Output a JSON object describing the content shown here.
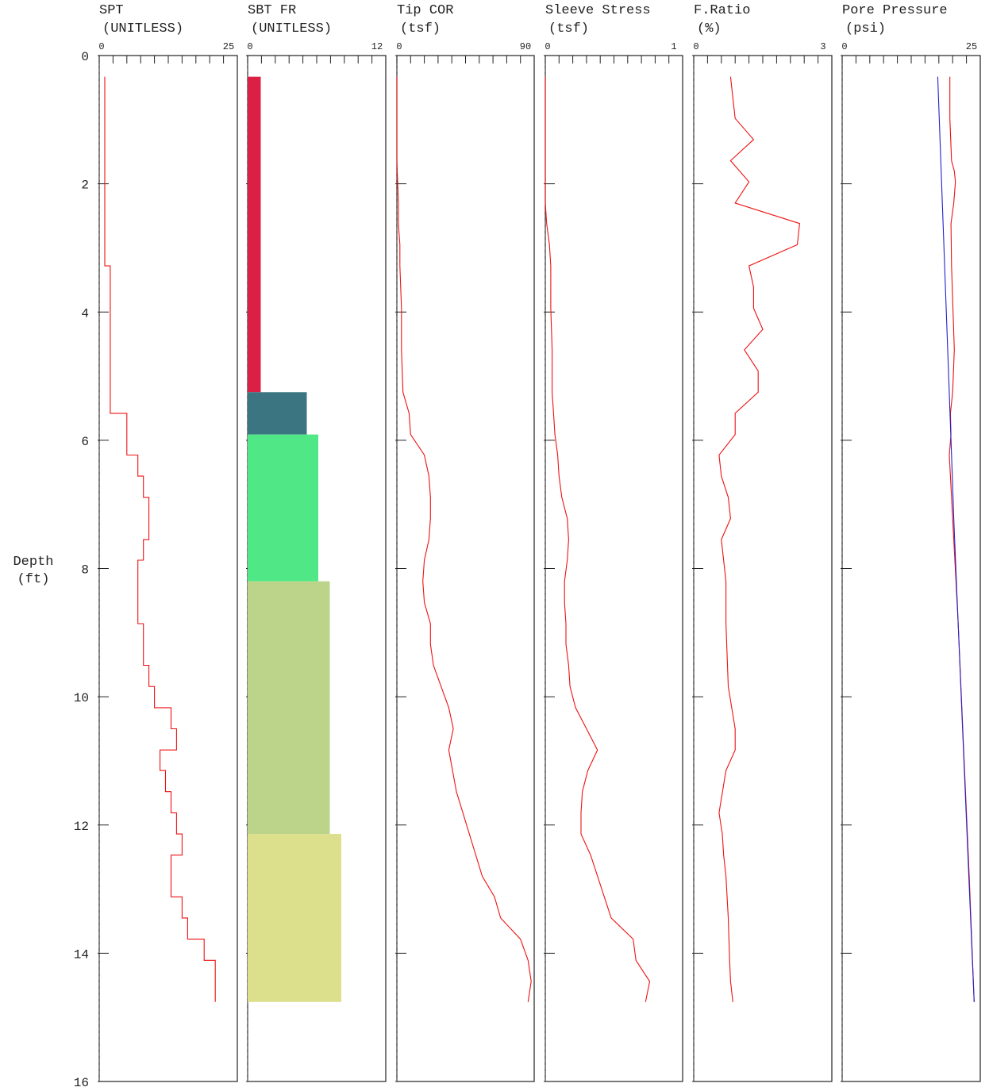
{
  "depth_axis": {
    "label_line1": "Depth",
    "label_line2": "(ft)",
    "min": 0,
    "max": 16,
    "ticks": [
      "0",
      "2",
      "4",
      "6",
      "8",
      "10",
      "12",
      "14",
      "16"
    ]
  },
  "colors": {
    "line_primary": "#ee1111",
    "line_secondary": "#2222cc",
    "frame": "#222222"
  },
  "chart_data": [
    {
      "type": "line",
      "title": "SPT",
      "unit": "(UNITLESS)",
      "xlim": [
        0,
        25
      ],
      "xmin_label": "0",
      "xmax_label": "25",
      "step": true,
      "series": [
        {
          "x": [
            1,
            1,
            2,
            2,
            5,
            5,
            7,
            7,
            8,
            8,
            9,
            9,
            8,
            8,
            7,
            7,
            8,
            8,
            9,
            9,
            10,
            10,
            13,
            13,
            14,
            14,
            11,
            11,
            12,
            12,
            13,
            13,
            14,
            14,
            15,
            15,
            13,
            13,
            15,
            15,
            16,
            16,
            19,
            19,
            21,
            21
          ],
          "y": [
            0.33,
            3.28,
            3.28,
            5.58,
            5.58,
            6.23,
            6.23,
            6.56,
            6.56,
            6.89,
            6.89,
            7.55,
            7.55,
            7.87,
            7.87,
            8.86,
            8.86,
            9.51,
            9.51,
            9.84,
            9.84,
            10.17,
            10.17,
            10.5,
            10.5,
            10.83,
            10.83,
            11.15,
            11.15,
            11.48,
            11.48,
            11.81,
            11.81,
            12.14,
            12.14,
            12.47,
            12.47,
            13.12,
            13.12,
            13.45,
            13.45,
            13.78,
            13.78,
            14.11,
            14.11,
            14.76
          ]
        }
      ]
    },
    {
      "type": "bar",
      "title": "SBT FR",
      "unit": "(UNITLESS)",
      "xlim": [
        0,
        12
      ],
      "xmin_label": "0",
      "xmax_label": "12",
      "segments": [
        {
          "top": 0.33,
          "bottom": 5.25,
          "value": 1,
          "color": "#dc1f44"
        },
        {
          "top": 5.25,
          "bottom": 5.91,
          "value": 5,
          "color": "#3b7582"
        },
        {
          "top": 5.91,
          "bottom": 8.2,
          "value": 6,
          "color": "#50e886"
        },
        {
          "top": 8.2,
          "bottom": 12.14,
          "value": 7,
          "color": "#bcd38a"
        },
        {
          "top": 12.14,
          "bottom": 14.76,
          "value": 8,
          "color": "#dcdf8c"
        }
      ]
    },
    {
      "type": "line",
      "title": "Tip COR",
      "unit": "(tsf)",
      "xlim": [
        0,
        90
      ],
      "xmin_label": "0",
      "xmax_label": "90",
      "series": [
        {
          "x": [
            0,
            0,
            0,
            1,
            1,
            2,
            2,
            3,
            3,
            4,
            8,
            9,
            18,
            21,
            22,
            22,
            21,
            18,
            17,
            18,
            22,
            22,
            24,
            29,
            34,
            37,
            34,
            39,
            56,
            64,
            68,
            81,
            86,
            88,
            86
          ],
          "y": [
            0.33,
            0.98,
            1.64,
            2.3,
            2.62,
            2.95,
            3.28,
            3.94,
            4.59,
            5.25,
            5.58,
            5.91,
            6.23,
            6.56,
            6.89,
            7.22,
            7.55,
            7.87,
            8.2,
            8.53,
            8.86,
            9.18,
            9.51,
            9.84,
            10.17,
            10.5,
            10.83,
            11.48,
            12.8,
            13.12,
            13.45,
            13.78,
            14.11,
            14.44,
            14.76
          ]
        }
      ]
    },
    {
      "type": "line",
      "title": "Sleeve Stress",
      "unit": "(tsf)",
      "xlim": [
        0,
        1
      ],
      "xmin_label": "0",
      "xmax_label": "1",
      "series": [
        {
          "x": [
            0.0,
            0.0,
            0.0,
            0.0,
            0.01,
            0.03,
            0.04,
            0.04,
            0.05,
            0.05,
            0.06,
            0.07,
            0.09,
            0.1,
            0.12,
            0.16,
            0.17,
            0.16,
            0.14,
            0.14,
            0.15,
            0.15,
            0.17,
            0.18,
            0.22,
            0.3,
            0.38,
            0.31,
            0.27,
            0.26,
            0.26,
            0.33,
            0.48,
            0.64,
            0.66,
            0.76,
            0.73
          ],
          "y": [
            0.33,
            0.98,
            1.64,
            2.3,
            2.62,
            2.95,
            3.28,
            3.94,
            4.59,
            5.25,
            5.58,
            5.91,
            6.23,
            6.56,
            6.89,
            7.22,
            7.55,
            7.87,
            8.2,
            8.53,
            8.86,
            9.18,
            9.51,
            9.84,
            10.17,
            10.5,
            10.83,
            11.15,
            11.48,
            11.81,
            12.14,
            12.47,
            13.45,
            13.78,
            14.11,
            14.44,
            14.76
          ]
        }
      ]
    },
    {
      "type": "line",
      "title": "F.Ratio",
      "unit": "(%)",
      "xlim": [
        0,
        3
      ],
      "xmin_label": "0",
      "xmax_label": "3",
      "series": [
        {
          "x": [
            0.8,
            0.85,
            0.9,
            1.3,
            0.8,
            1.2,
            0.9,
            2.3,
            2.25,
            1.2,
            1.3,
            1.3,
            1.5,
            1.1,
            1.4,
            1.4,
            0.9,
            0.9,
            0.55,
            0.6,
            0.75,
            0.8,
            0.6,
            0.7,
            0.7,
            0.75,
            0.9,
            0.9,
            0.7,
            0.55,
            0.62,
            0.65,
            0.7,
            0.75,
            0.78,
            0.8,
            0.85
          ],
          "y": [
            0.33,
            0.66,
            0.98,
            1.31,
            1.64,
            1.97,
            2.3,
            2.62,
            2.95,
            3.28,
            3.61,
            3.94,
            4.27,
            4.59,
            4.92,
            5.25,
            5.58,
            5.91,
            6.23,
            6.56,
            6.89,
            7.22,
            7.55,
            8.2,
            8.86,
            9.84,
            10.5,
            10.83,
            11.15,
            11.81,
            12.14,
            12.47,
            12.8,
            13.45,
            14.11,
            14.44,
            14.76
          ]
        }
      ]
    },
    {
      "type": "line",
      "title": "Pore Pressure",
      "unit": "(psi)",
      "xlim": [
        0,
        25
      ],
      "xmin_label": "0",
      "xmax_label": "25",
      "series": [
        {
          "x": [
            19.5,
            19.5,
            19.8,
            20.3,
            20.5,
            20.2,
            19.7,
            19.8,
            20.3,
            20.0,
            19.6,
            19.7,
            19.4,
            19.6,
            20.0,
            21.0,
            22.0,
            23.0,
            23.9
          ],
          "y": [
            0.33,
            0.98,
            1.64,
            1.8,
            1.97,
            2.3,
            2.62,
            3.28,
            4.59,
            5.25,
            5.58,
            5.91,
            6.23,
            6.56,
            7.22,
            8.86,
            10.83,
            12.8,
            14.76
          ]
        },
        {
          "x": [
            17.3,
            19.8,
            20.2,
            21.8,
            23.9
          ],
          "y": [
            0.33,
            6.23,
            7.22,
            10.5,
            14.76
          ]
        }
      ]
    }
  ]
}
